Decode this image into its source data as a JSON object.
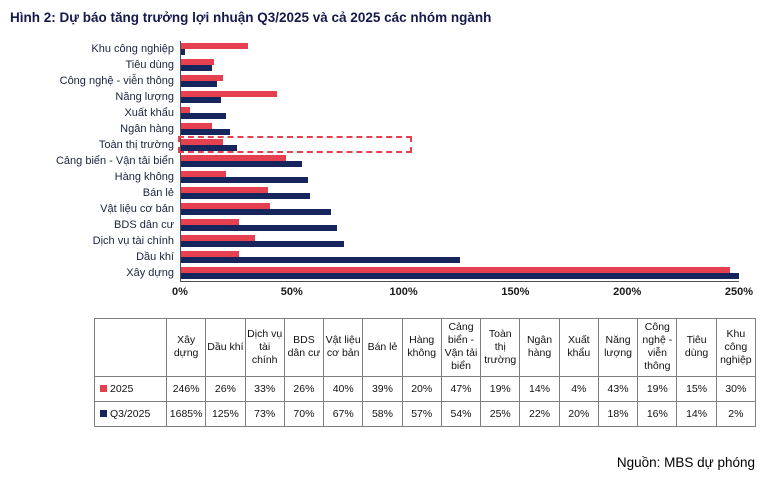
{
  "title": "Hình 2: Dự báo tăng trưởng lợi nhuận Q3/2025 và cả 2025 các nhóm ngành",
  "source": "Nguồn: MBS dự phóng",
  "colors": {
    "series_2025": "#E5404F",
    "series_q3_2025": "#16265C",
    "highlight_box": "#E5404F"
  },
  "chart_data": {
    "type": "bar",
    "orientation": "horizontal",
    "xlim": [
      0,
      250
    ],
    "x_ticks": [
      0,
      50,
      100,
      150,
      200,
      250
    ],
    "x_tick_labels": [
      "0%",
      "50%",
      "100%",
      "150%",
      "200%",
      "250%"
    ],
    "grid": false,
    "legend_position": "table-left-column",
    "categories_top_to_bottom": [
      "Khu công nghiệp",
      "Tiêu dùng",
      "Công nghệ - viễn thông",
      "Năng lượng",
      "Xuất khẩu",
      "Ngân hàng",
      "Toàn thị trường",
      "Cảng biển - Vận tải biển",
      "Hàng không",
      "Bán lẻ",
      "Vật liệu cơ bản",
      "BDS dân cư",
      "Dịch vụ tài chính",
      "Dầu khí",
      "Xây dựng"
    ],
    "series": [
      {
        "name": "2025",
        "color": "#E5404F",
        "values_pct": [
          30,
          15,
          19,
          43,
          4,
          14,
          19,
          47,
          20,
          39,
          40,
          26,
          33,
          26,
          246
        ]
      },
      {
        "name": "Q3/2025",
        "color": "#16265C",
        "values_pct": [
          2,
          14,
          16,
          18,
          20,
          22,
          25,
          54,
          57,
          58,
          67,
          70,
          73,
          125,
          1685
        ]
      }
    ],
    "highlighted_category": "Toàn thị trường",
    "highlight_box_extent_pct": 105,
    "bars_clipped_at_xlim": [
      "Xây dựng"
    ]
  },
  "table": {
    "columns": [
      "Xây dựng",
      "Dầu khí",
      "Dịch vụ tài chính",
      "BDS dân cư",
      "Vật liệu cơ bản",
      "Bán lẻ",
      "Hàng không",
      "Cảng biển - Vận tải biển",
      "Toàn thị trường",
      "Ngân hàng",
      "Xuất khẩu",
      "Năng lượng",
      "Công nghệ - viễn thông",
      "Tiêu dùng",
      "Khu công nghiệp"
    ],
    "rows": [
      {
        "name": "2025",
        "color": "#E5404F",
        "values": [
          "246%",
          "26%",
          "33%",
          "26%",
          "40%",
          "39%",
          "20%",
          "47%",
          "19%",
          "14%",
          "4%",
          "43%",
          "19%",
          "15%",
          "30%"
        ]
      },
      {
        "name": "Q3/2025",
        "color": "#16265C",
        "values": [
          "1685%",
          "125%",
          "73%",
          "70%",
          "67%",
          "58%",
          "57%",
          "54%",
          "25%",
          "22%",
          "20%",
          "18%",
          "16%",
          "14%",
          "2%"
        ]
      }
    ]
  }
}
